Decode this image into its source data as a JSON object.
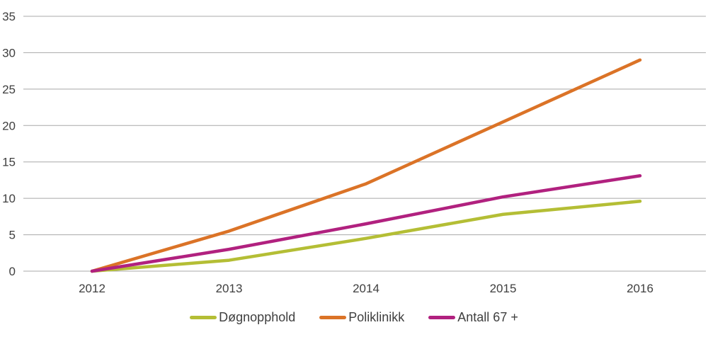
{
  "chart_data": {
    "type": "line",
    "title": "",
    "xlabel": "",
    "ylabel": "",
    "categories": [
      "2012",
      "2013",
      "2014",
      "2015",
      "2016"
    ],
    "series": [
      {
        "name": "Døgnopphold",
        "color": "#b4be35",
        "values": [
          0,
          1.5,
          4.5,
          7.8,
          9.6
        ]
      },
      {
        "name": "Poliklinikk",
        "color": "#db7327",
        "values": [
          0,
          5.5,
          12,
          20.5,
          29
        ]
      },
      {
        "name": "Antall 67 +",
        "color": "#b1217f",
        "values": [
          0,
          3,
          6.5,
          10.2,
          13.1
        ]
      }
    ],
    "ylim": [
      0,
      35
    ],
    "yticks": [
      "0",
      "5",
      "10",
      "15",
      "20",
      "25",
      "30",
      "35"
    ],
    "grid": true,
    "legend_position": "bottom",
    "colors": {
      "gridline": "#a8a8a8",
      "tick_text": "#3f3f3f",
      "background": "#ffffff"
    }
  }
}
